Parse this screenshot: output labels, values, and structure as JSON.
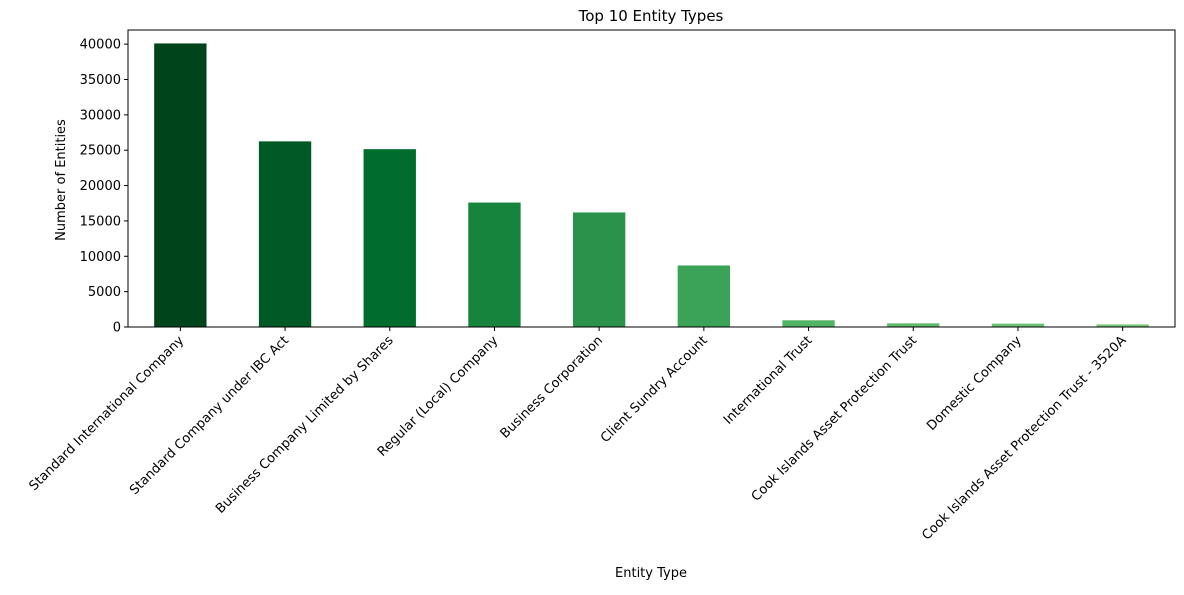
{
  "chart_data": {
    "type": "bar",
    "title": "Top 10 Entity Types",
    "xlabel": "Entity Type",
    "ylabel": "Number of Entities",
    "ylim": [
      0,
      42000
    ],
    "yticks": [
      0,
      5000,
      10000,
      15000,
      20000,
      25000,
      30000,
      35000,
      40000
    ],
    "grid": false,
    "categories": [
      "Standard International Company",
      "Standard Company under IBC Act",
      "Business Company Limited by Shares",
      "Regular (Local) Company",
      "Business Corporation",
      "Client Sundry Account",
      "International Trust",
      "Cook Islands Asset Protection Trust",
      "Domestic Company",
      "Cook Islands Asset Protection Trust - 3520A"
    ],
    "values": [
      40100,
      26250,
      25150,
      17600,
      16200,
      8700,
      950,
      520,
      480,
      370
    ],
    "colors": [
      "#00441b",
      "#005a26",
      "#006d2c",
      "#16843d",
      "#2a924a",
      "#3aa357",
      "#53b466",
      "#62bb6d",
      "#6ec273",
      "#7ac97a"
    ]
  }
}
